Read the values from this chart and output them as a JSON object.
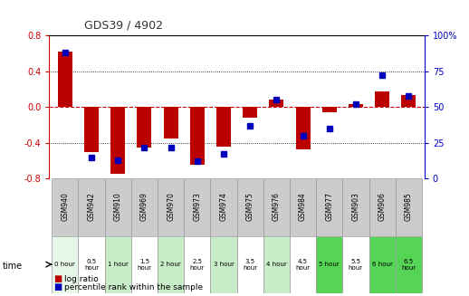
{
  "title": "GDS39 / 4902",
  "samples": [
    "GSM940",
    "GSM942",
    "GSM910",
    "GSM969",
    "GSM970",
    "GSM973",
    "GSM974",
    "GSM975",
    "GSM976",
    "GSM984",
    "GSM977",
    "GSM903",
    "GSM906",
    "GSM985"
  ],
  "time_labels": [
    "0 hour",
    "0.5\nhour",
    "1 hour",
    "1.5\nhour",
    "2 hour",
    "2.5\nhour",
    "3 hour",
    "3.5\nhour",
    "4 hour",
    "4.5\nhour",
    "5 hour",
    "5.5\nhour",
    "6 hour",
    "6.5\nhour"
  ],
  "time_bg_colors": [
    "#e8f8e8",
    "#ffffff",
    "#c8ecc8",
    "#ffffff",
    "#c8ecc8",
    "#ffffff",
    "#c8ecc8",
    "#ffffff",
    "#c8ecc8",
    "#ffffff",
    "#55d455",
    "#ffffff",
    "#55d455",
    "#55d455"
  ],
  "log_ratio": [
    0.62,
    -0.5,
    -0.75,
    -0.45,
    -0.35,
    -0.65,
    -0.44,
    -0.12,
    0.08,
    -0.47,
    -0.06,
    0.03,
    0.17,
    0.13
  ],
  "percentile": [
    88,
    15,
    13,
    22,
    22,
    12,
    17,
    37,
    55,
    30,
    35,
    52,
    72,
    58
  ],
  "ylim_left": [
    -0.8,
    0.8
  ],
  "ylim_right": [
    0,
    100
  ],
  "yticks_left": [
    -0.8,
    -0.4,
    0.0,
    0.4,
    0.8
  ],
  "yticks_right": [
    0,
    25,
    50,
    75,
    100
  ],
  "bar_color": "#bb0000",
  "dot_color": "#0000bb",
  "hline_color": "#cc0000",
  "left_tick_color": "#cc0000",
  "right_tick_color": "#0000cc",
  "legend_log_label": "log ratio",
  "legend_pct_label": "percentile rank within the sample",
  "label_bg_color": "#cccccc",
  "label_border_color": "#999999"
}
